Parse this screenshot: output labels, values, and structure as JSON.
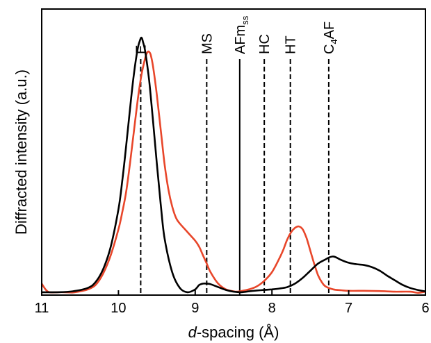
{
  "chart_data": {
    "type": "line",
    "xlabel_italic": "d",
    "xlabel_rest": "-spacing (Å)",
    "ylabel": "Diffracted intensity (a.u.)",
    "xlim": [
      11,
      6
    ],
    "x_axis_reversed": true,
    "x_ticks": [
      11,
      10,
      9,
      8,
      7,
      6
    ],
    "x_tick_labels": [
      "11",
      "10",
      "9",
      "8",
      "7",
      "6"
    ],
    "y_ticks_shown": false,
    "grid": false,
    "reference_lines": [
      {
        "x": 9.71,
        "label": "E",
        "style": "dashed"
      },
      {
        "x": 8.85,
        "label": "MS",
        "style": "dashed"
      },
      {
        "x": 8.42,
        "label": "AFm",
        "label_sub": "ss",
        "style": "solid"
      },
      {
        "x": 8.1,
        "label": "HC",
        "style": "dashed"
      },
      {
        "x": 7.76,
        "label": "HT",
        "style": "dashed"
      },
      {
        "x": 7.26,
        "label": "C",
        "label_sub": "4",
        "label_rest": "AF",
        "style": "dashed"
      }
    ],
    "series": [
      {
        "color": "#000000",
        "x": [
          11.0,
          10.8,
          10.6,
          10.4,
          10.3,
          10.2,
          10.1,
          10.0,
          9.95,
          9.9,
          9.85,
          9.8,
          9.75,
          9.72,
          9.7,
          9.68,
          9.65,
          9.6,
          9.55,
          9.5,
          9.45,
          9.4,
          9.3,
          9.2,
          9.1,
          9.0,
          8.95,
          8.9,
          8.85,
          8.8,
          8.7,
          8.6,
          8.5,
          8.4,
          8.3,
          8.2,
          8.1,
          8.0,
          7.9,
          7.8,
          7.7,
          7.6,
          7.5,
          7.4,
          7.3,
          7.25,
          7.2,
          7.15,
          7.1,
          7.0,
          6.9,
          6.8,
          6.7,
          6.6,
          6.5,
          6.4,
          6.3,
          6.2,
          6.1,
          6.0
        ],
        "y": [
          1.0,
          1.0,
          1.3,
          2.5,
          4.5,
          9.0,
          17.0,
          30.0,
          40.0,
          52.0,
          65.0,
          77.0,
          86.0,
          89.0,
          90.0,
          88.5,
          85.0,
          75.0,
          61.0,
          46.0,
          32.0,
          20.0,
          8.0,
          2.5,
          1.0,
          2.0,
          3.5,
          4.0,
          4.0,
          3.8,
          2.8,
          1.8,
          1.2,
          1.0,
          1.3,
          1.6,
          1.8,
          2.0,
          2.3,
          2.8,
          4.0,
          6.0,
          8.5,
          11.0,
          12.5,
          13.2,
          13.5,
          13.0,
          12.3,
          11.3,
          10.8,
          10.5,
          9.8,
          8.6,
          6.8,
          5.2,
          3.6,
          2.5,
          1.8,
          1.3
        ]
      },
      {
        "color": "#E8462A",
        "x": [
          11.0,
          10.95,
          10.9,
          10.8,
          10.7,
          10.6,
          10.5,
          10.4,
          10.3,
          10.2,
          10.1,
          10.0,
          9.95,
          9.9,
          9.85,
          9.8,
          9.75,
          9.7,
          9.65,
          9.62,
          9.6,
          9.58,
          9.55,
          9.5,
          9.45,
          9.4,
          9.35,
          9.3,
          9.25,
          9.2,
          9.1,
          9.0,
          8.95,
          8.9,
          8.85,
          8.8,
          8.7,
          8.6,
          8.5,
          8.45,
          8.4,
          8.3,
          8.2,
          8.1,
          8.0,
          7.9,
          7.85,
          7.8,
          7.75,
          7.7,
          7.65,
          7.6,
          7.55,
          7.5,
          7.45,
          7.4,
          7.35,
          7.3,
          7.2,
          7.1,
          7.0,
          6.8,
          6.6,
          6.4,
          6.2,
          6.1,
          6.0
        ],
        "y": [
          4.0,
          2.0,
          1.0,
          1.0,
          1.0,
          0.9,
          1.3,
          2.0,
          3.5,
          7.5,
          14.0,
          23.0,
          29.0,
          36.0,
          46.0,
          57.0,
          68.0,
          77.0,
          83.0,
          85.0,
          85.0,
          84.0,
          80.0,
          70.0,
          58.0,
          46.0,
          37.0,
          31.0,
          27.0,
          25.0,
          22.0,
          19.0,
          17.0,
          14.0,
          11.0,
          8.0,
          4.0,
          2.0,
          1.3,
          1.2,
          1.4,
          2.0,
          3.0,
          5.0,
          8.0,
          13.0,
          16.0,
          19.5,
          22.0,
          23.5,
          24.0,
          23.0,
          20.0,
          15.5,
          11.0,
          7.0,
          4.5,
          3.0,
          2.0,
          1.7,
          1.5,
          1.5,
          1.4,
          1.2,
          1.2,
          0.8,
          1.2
        ]
      }
    ]
  }
}
